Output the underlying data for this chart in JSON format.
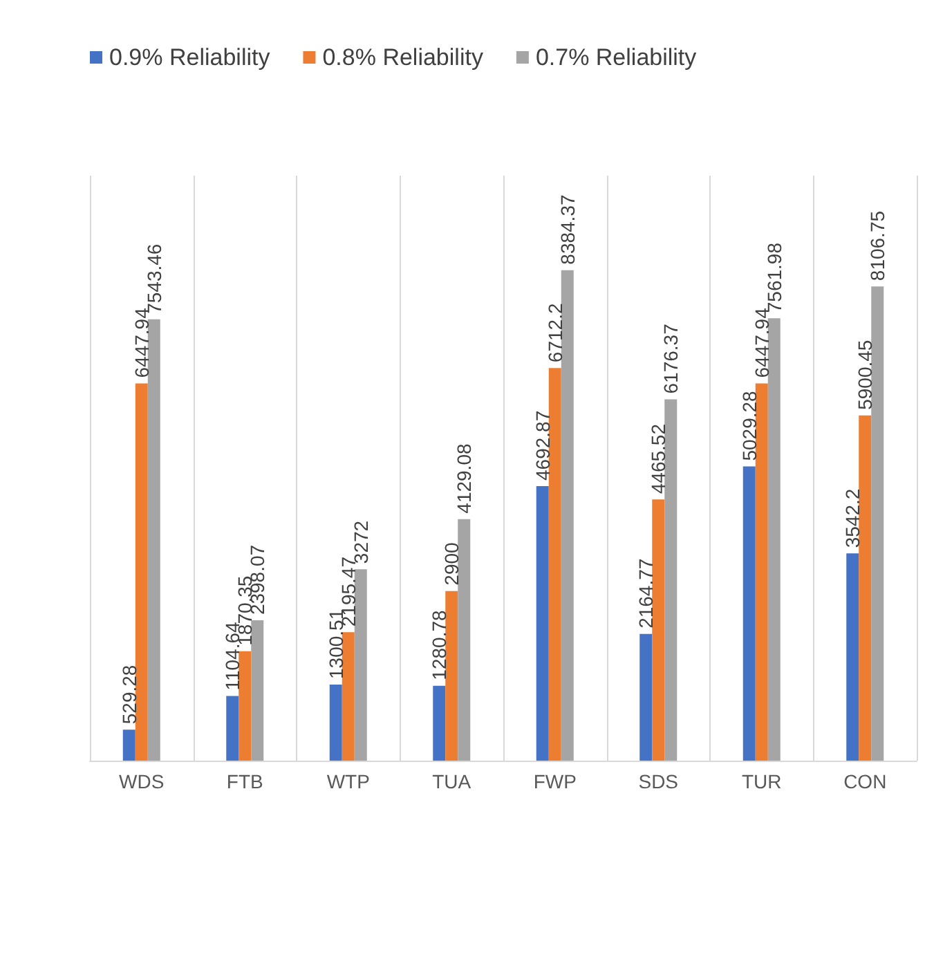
{
  "chart_data": {
    "type": "bar",
    "categories": [
      "WDS",
      "FTB",
      "WTP",
      "TUA",
      "FWP",
      "SDS",
      "TUR",
      "CON"
    ],
    "series": [
      {
        "name": "0.9% Reliability",
        "color": "#4472c4",
        "values": [
          529.28,
          1104.64,
          1300.51,
          1280.78,
          4692.87,
          2164.77,
          5029.28,
          3542.2
        ]
      },
      {
        "name": "0.8% Reliability",
        "color": "#ed7d31",
        "values": [
          6447.94,
          1870.35,
          2195.47,
          2900,
          6712.2,
          4465.52,
          6447.94,
          5900.45
        ]
      },
      {
        "name": "0.7% Reliability",
        "color": "#a5a5a5",
        "values": [
          7543.46,
          2398.07,
          3272,
          4129.08,
          8384.37,
          6176.37,
          7561.98,
          8106.75
        ]
      }
    ],
    "data_labels": true,
    "grid": "x",
    "legend": "top"
  }
}
